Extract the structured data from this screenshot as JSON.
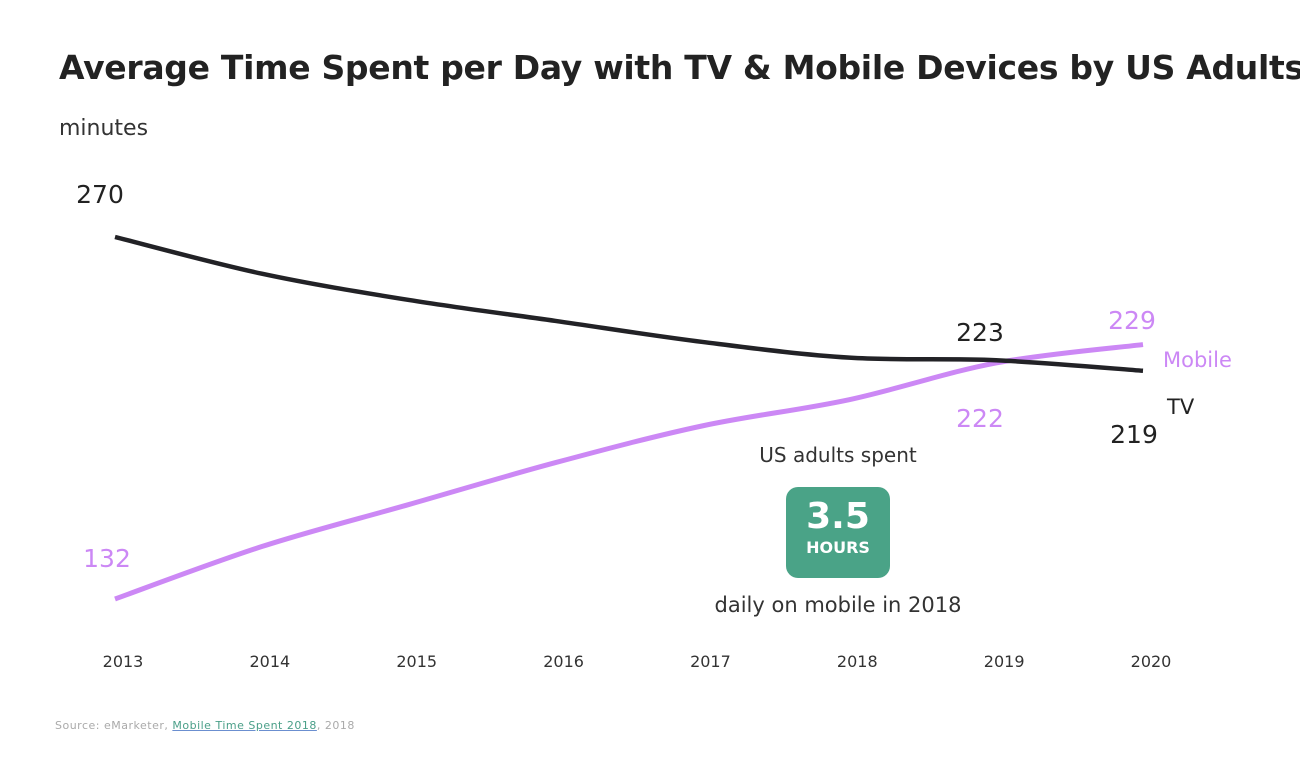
{
  "chart_data": {
    "type": "line",
    "title": "Average Time Spent per Day with TV & Mobile Devices by US Adults",
    "ylabel": "minutes",
    "xlabel": "",
    "x": [
      "2013",
      "2014",
      "2015",
      "2016",
      "2017",
      "2018",
      "2019",
      "2020"
    ],
    "ylim": [
      120,
      280
    ],
    "grid": false,
    "series": [
      {
        "name": "TV",
        "color": "#222226",
        "values": [
          270,
          256,
          246,
          238,
          230,
          224,
          223,
          219
        ],
        "labels": [
          {
            "index": 0,
            "text": "270",
            "position": "above"
          },
          {
            "index": 6,
            "text": "223",
            "position": "above"
          },
          {
            "index": 7,
            "text": "219",
            "position": "below"
          }
        ]
      },
      {
        "name": "Mobile",
        "color": "#cc88f5",
        "values": [
          132,
          152,
          168,
          184,
          198,
          208,
          222,
          229
        ],
        "labels": [
          {
            "index": 0,
            "text": "132",
            "position": "above"
          },
          {
            "index": 6,
            "text": "222",
            "position": "below"
          },
          {
            "index": 7,
            "text": "229",
            "position": "above"
          }
        ]
      }
    ],
    "annotation": {
      "top_text": "US adults spent",
      "value": "3.5",
      "unit": "HOURS",
      "bottom_text": "daily on mobile in 2018",
      "color": "#4aa387"
    }
  },
  "source": {
    "prefix": "Source: eMarketer, ",
    "link_text": "Mobile Time Spent 2018",
    "suffix": ", 2018"
  }
}
